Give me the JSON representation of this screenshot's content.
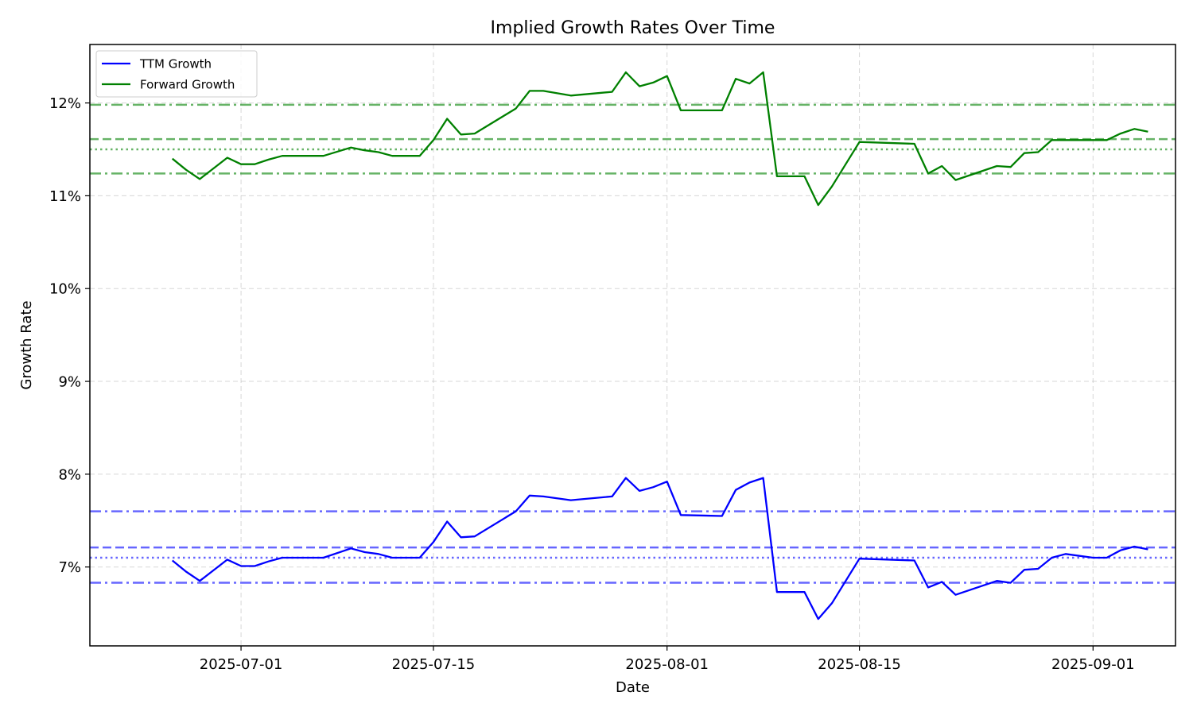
{
  "chart_data": {
    "type": "line",
    "title": "Implied Growth Rates Over Time",
    "xlabel": "Date",
    "ylabel": "Growth Rate",
    "xlim": [
      "2025-06-20",
      "2025-09-07"
    ],
    "ylim": [
      6.15,
      12.63
    ],
    "x_ticks": [
      "2025-07-01",
      "2025-07-15",
      "2025-08-01",
      "2025-08-15",
      "2025-09-01"
    ],
    "y_ticks": [
      7,
      8,
      9,
      10,
      11,
      12
    ],
    "y_tick_labels": [
      "7%",
      "8%",
      "9%",
      "10%",
      "11%",
      "12%"
    ],
    "grid": true,
    "legend_position": "top-left",
    "series": [
      {
        "name": "TTM Growth",
        "color": "#0000ff",
        "x": [
          "2025-06-26",
          "2025-06-27",
          "2025-06-28",
          "2025-06-30",
          "2025-07-01",
          "2025-07-02",
          "2025-07-03",
          "2025-07-04",
          "2025-07-07",
          "2025-07-09",
          "2025-07-10",
          "2025-07-11",
          "2025-07-12",
          "2025-07-14",
          "2025-07-15",
          "2025-07-16",
          "2025-07-17",
          "2025-07-18",
          "2025-07-21",
          "2025-07-22",
          "2025-07-23",
          "2025-07-25",
          "2025-07-28",
          "2025-07-29",
          "2025-07-30",
          "2025-07-31",
          "2025-08-01",
          "2025-08-02",
          "2025-08-05",
          "2025-08-06",
          "2025-08-07",
          "2025-08-08",
          "2025-08-09",
          "2025-08-11",
          "2025-08-12",
          "2025-08-13",
          "2025-08-15",
          "2025-08-19",
          "2025-08-20",
          "2025-08-21",
          "2025-08-22",
          "2025-08-25",
          "2025-08-26",
          "2025-08-27",
          "2025-08-28",
          "2025-08-29",
          "2025-08-30",
          "2025-09-01",
          "2025-09-02",
          "2025-09-03",
          "2025-09-04",
          "2025-09-05"
        ],
        "values": [
          7.07,
          6.95,
          6.85,
          7.08,
          7.01,
          7.01,
          7.06,
          7.1,
          7.1,
          7.2,
          7.16,
          7.14,
          7.1,
          7.1,
          7.27,
          7.49,
          7.32,
          7.33,
          7.6,
          7.77,
          7.76,
          7.72,
          7.76,
          7.96,
          7.82,
          7.86,
          7.92,
          7.56,
          7.55,
          7.83,
          7.91,
          7.96,
          6.73,
          6.73,
          6.44,
          6.61,
          7.09,
          7.07,
          6.78,
          6.84,
          6.7,
          6.85,
          6.83,
          6.97,
          6.98,
          7.1,
          7.14,
          7.1,
          7.1,
          7.18,
          7.22,
          7.19
        ]
      },
      {
        "name": "Forward Growth",
        "color": "#008000",
        "x": [
          "2025-06-26",
          "2025-06-27",
          "2025-06-28",
          "2025-06-30",
          "2025-07-01",
          "2025-07-02",
          "2025-07-03",
          "2025-07-04",
          "2025-07-07",
          "2025-07-09",
          "2025-07-10",
          "2025-07-11",
          "2025-07-12",
          "2025-07-14",
          "2025-07-15",
          "2025-07-16",
          "2025-07-17",
          "2025-07-18",
          "2025-07-21",
          "2025-07-22",
          "2025-07-23",
          "2025-07-25",
          "2025-07-28",
          "2025-07-29",
          "2025-07-30",
          "2025-07-31",
          "2025-08-01",
          "2025-08-02",
          "2025-08-05",
          "2025-08-06",
          "2025-08-07",
          "2025-08-08",
          "2025-08-09",
          "2025-08-11",
          "2025-08-12",
          "2025-08-13",
          "2025-08-15",
          "2025-08-19",
          "2025-08-20",
          "2025-08-21",
          "2025-08-22",
          "2025-08-25",
          "2025-08-26",
          "2025-08-27",
          "2025-08-28",
          "2025-08-29",
          "2025-08-30",
          "2025-09-01",
          "2025-09-02",
          "2025-09-03",
          "2025-09-04",
          "2025-09-05"
        ],
        "values": [
          11.4,
          11.28,
          11.18,
          11.41,
          11.34,
          11.34,
          11.39,
          11.43,
          11.43,
          11.52,
          11.49,
          11.47,
          11.43,
          11.43,
          11.6,
          11.83,
          11.66,
          11.67,
          11.94,
          12.13,
          12.13,
          12.08,
          12.12,
          12.33,
          12.18,
          12.22,
          12.29,
          11.92,
          11.92,
          12.26,
          12.21,
          12.33,
          11.21,
          11.21,
          10.9,
          11.1,
          11.58,
          11.56,
          11.24,
          11.32,
          11.17,
          11.32,
          11.31,
          11.46,
          11.47,
          11.6,
          11.6,
          11.6,
          11.6,
          11.67,
          11.72,
          11.69
        ]
      }
    ],
    "reference_lines": [
      {
        "series": "TTM Growth",
        "value": 7.6,
        "style": "dashdot",
        "color": "#0000ff"
      },
      {
        "series": "TTM Growth",
        "value": 7.21,
        "style": "dashed",
        "color": "#0000ff"
      },
      {
        "series": "TTM Growth",
        "value": 7.1,
        "style": "dotted",
        "color": "#0000ff"
      },
      {
        "series": "TTM Growth",
        "value": 6.83,
        "style": "dashdot",
        "color": "#0000ff"
      },
      {
        "series": "Forward Growth",
        "value": 11.98,
        "style": "dashdot",
        "color": "#008000"
      },
      {
        "series": "Forward Growth",
        "value": 11.61,
        "style": "dashed",
        "color": "#008000"
      },
      {
        "series": "Forward Growth",
        "value": 11.5,
        "style": "dotted",
        "color": "#008000"
      },
      {
        "series": "Forward Growth",
        "value": 11.24,
        "style": "dashdot",
        "color": "#008000"
      }
    ]
  }
}
